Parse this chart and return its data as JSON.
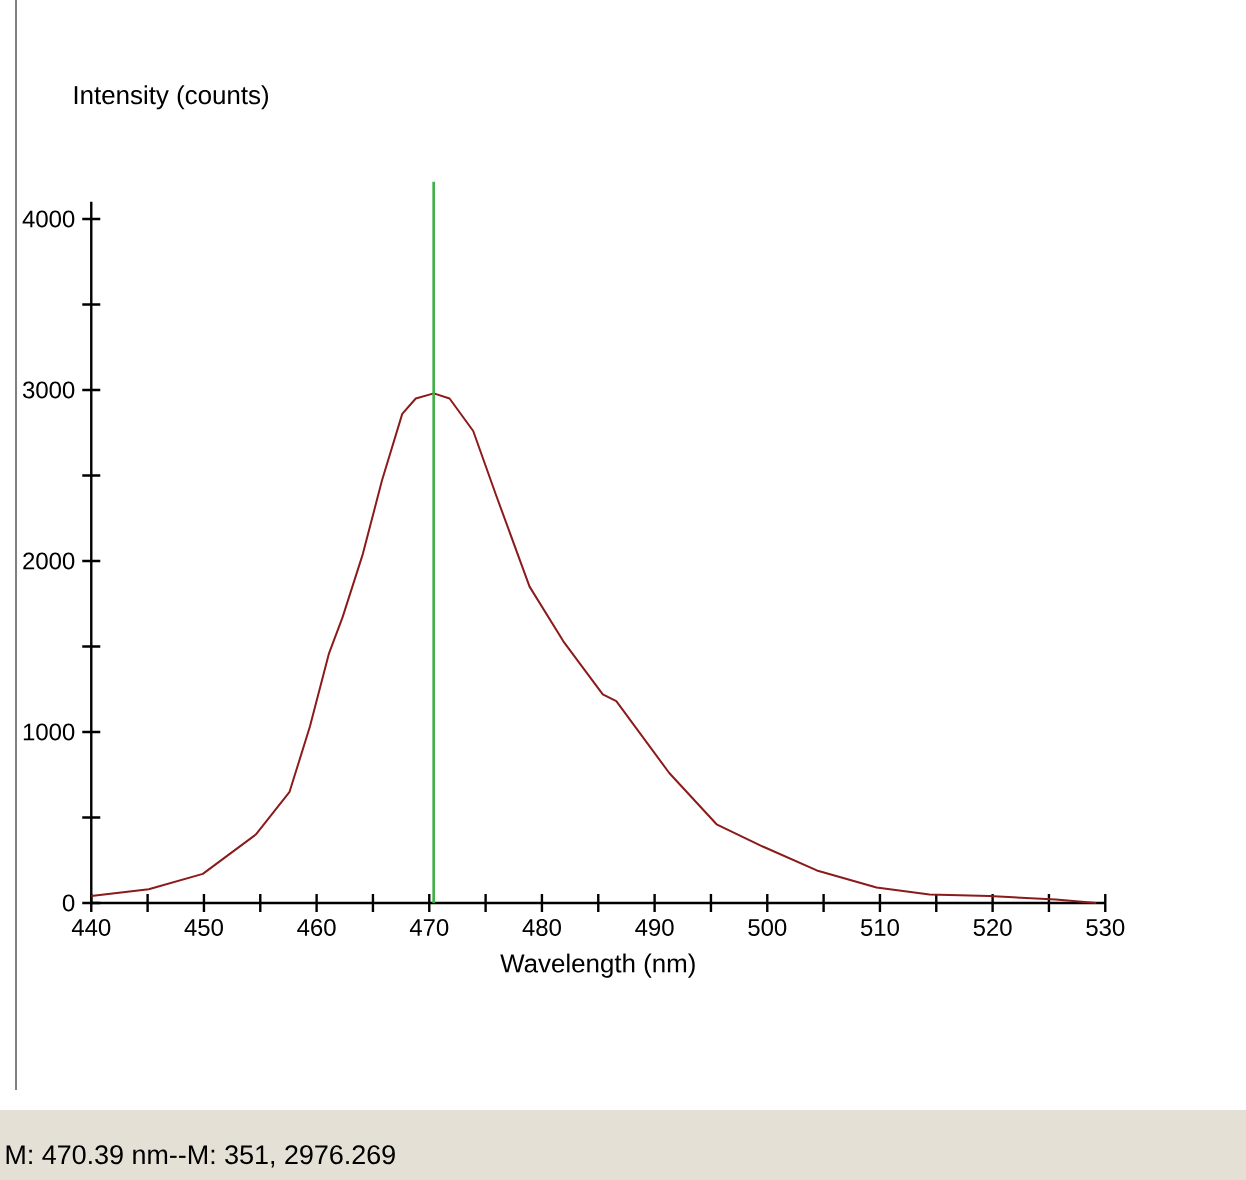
{
  "chart_data": {
    "type": "line",
    "xlabel": "Wavelength (nm)",
    "ylabel": "Intensity (counts)",
    "x": [
      440,
      445.1,
      449.9,
      454.6,
      457.6,
      459.4,
      461.1,
      462.3,
      464.1,
      465.8,
      467.6,
      468.8,
      470.4,
      471.8,
      473.9,
      475.9,
      478.9,
      481.9,
      485.4,
      486.6,
      491.3,
      495.5,
      499.6,
      504.4,
      509.7,
      514.4,
      519.7,
      525.6,
      529.2
    ],
    "series": [
      {
        "color": "#8b1a1a",
        "values": [
          40,
          80,
          170,
          400,
          650,
          1030,
          1460,
          1670,
          2040,
          2470,
          2860,
          2950,
          2980,
          2950,
          2760,
          2390,
          1850,
          1530,
          1220,
          1180,
          760,
          460,
          330,
          190,
          90,
          50,
          40,
          20,
          0
        ]
      }
    ],
    "xlim": [
      440,
      530
    ],
    "ylim": [
      0,
      4100
    ],
    "xticks": [
      440,
      {
        "value": 445,
        "label": null
      },
      450,
      {
        "value": 455,
        "label": null
      },
      460,
      {
        "value": 465,
        "label": null
      },
      470,
      {
        "value": 475,
        "label": null
      },
      480,
      {
        "value": 485,
        "label": null
      },
      490,
      {
        "value": 495,
        "label": null
      },
      500,
      {
        "value": 505,
        "label": null
      },
      510,
      {
        "value": 515,
        "label": null
      },
      520,
      {
        "value": 525,
        "label": null
      },
      530
    ],
    "yticks": [
      0,
      {
        "value": 500,
        "label": null
      },
      1000,
      {
        "value": 1500,
        "label": null
      },
      2000,
      {
        "value": 2500,
        "label": null
      },
      3000,
      {
        "value": 3500,
        "label": null
      },
      4000
    ],
    "ref_lines": [
      {
        "axis": "x",
        "value": 470.39,
        "color": "#3cb043"
      }
    ],
    "annotations": [
      "M: 470.39 nm--M: 351, 2976.269"
    ],
    "grid": false,
    "marker": "none",
    "line_style": "solid"
  }
}
